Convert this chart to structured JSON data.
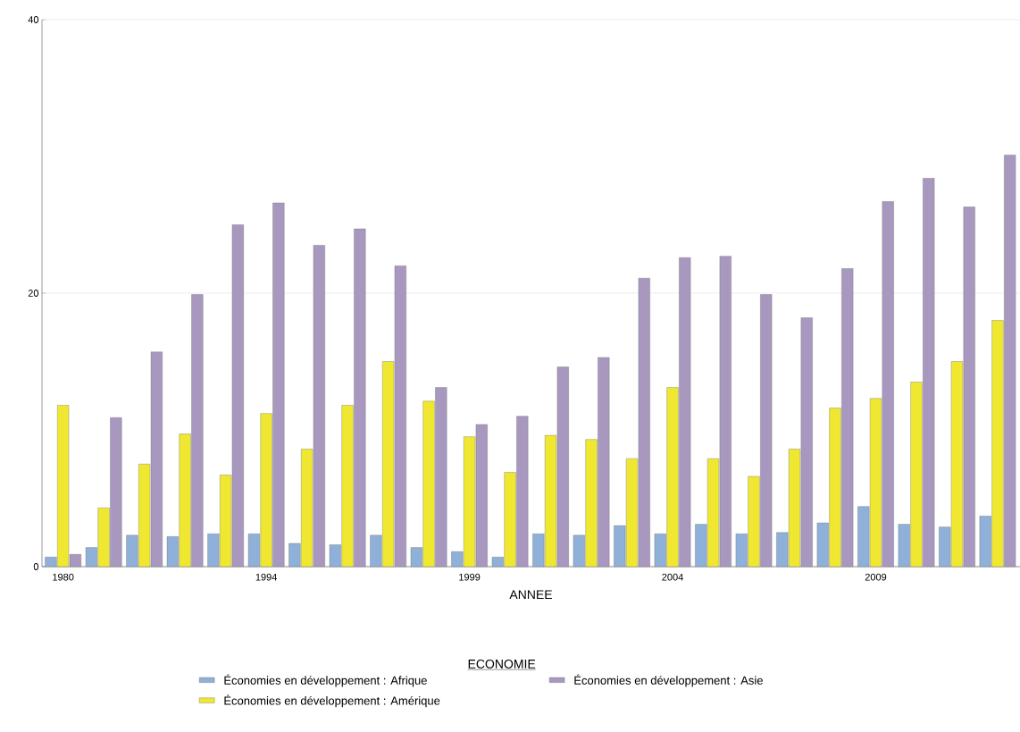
{
  "chart_data": {
    "type": "bar",
    "xlabel": "ANNEE",
    "legend_title": "ECONOMIE",
    "categories": [
      "1980",
      null,
      null,
      null,
      null,
      "1994",
      null,
      null,
      null,
      null,
      "1999",
      null,
      null,
      null,
      null,
      "2004",
      null,
      null,
      null,
      null,
      "2009",
      null,
      null,
      null
    ],
    "series": [
      {
        "name": "Économies en développement : Afrique",
        "color": "#8fb0d8",
        "values": [
          0.7,
          1.4,
          2.3,
          2.2,
          2.4,
          2.4,
          1.7,
          1.6,
          2.3,
          1.4,
          1.1,
          0.7,
          2.4,
          2.3,
          3.0,
          2.4,
          3.1,
          2.4,
          2.5,
          3.2,
          4.4,
          3.1,
          2.9,
          3.7
        ]
      },
      {
        "name": "Économies en développement : Amérique",
        "color": "#f0e830",
        "values": [
          11.8,
          4.3,
          7.5,
          9.7,
          6.7,
          11.2,
          8.6,
          11.8,
          15.0,
          12.1,
          9.5,
          6.9,
          9.6,
          9.3,
          7.9,
          13.1,
          7.9,
          6.6,
          8.6,
          11.6,
          12.3,
          13.5,
          15.0,
          18.0
        ]
      },
      {
        "name": "Économies en développement : Asie",
        "color": "#a898c0",
        "values": [
          0.9,
          10.9,
          15.7,
          19.9,
          25.0,
          26.6,
          23.5,
          24.7,
          22.0,
          13.1,
          10.4,
          11.0,
          14.6,
          15.3,
          21.1,
          22.6,
          22.7,
          19.9,
          18.2,
          21.8,
          26.7,
          28.4,
          26.3,
          30.1
        ]
      }
    ],
    "ylim": [
      0,
      40
    ],
    "yticks": [
      0,
      20,
      40
    ],
    "grid": "y",
    "legend": "bottom"
  }
}
